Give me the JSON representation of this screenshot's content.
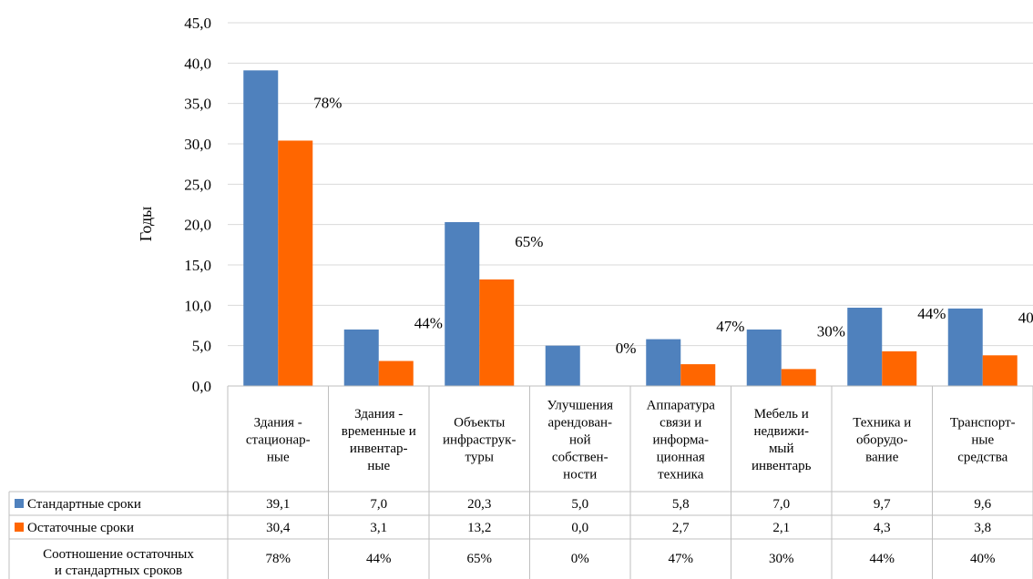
{
  "chart_data": {
    "type": "bar",
    "ylabel": "Годы",
    "ylim": [
      0,
      45
    ],
    "yticks": [
      "0,0",
      "5,0",
      "10,0",
      "15,0",
      "20,0",
      "25,0",
      "30,0",
      "35,0",
      "40,0",
      "45,0"
    ],
    "grid": true,
    "categories": [
      [
        "Здания -",
        "стационар-",
        "ные"
      ],
      [
        "Здания -",
        "временные и",
        "инвентар-",
        "ные"
      ],
      [
        "Объекты",
        "инфраструк-",
        "туры"
      ],
      [
        "Улучшения",
        "арендован-",
        "ной",
        "собствен-",
        "ности"
      ],
      [
        "Аппаратура",
        "связи и",
        "информа-",
        "ционная",
        "техника"
      ],
      [
        "Мебель и",
        "недвижи-",
        "мый",
        "инвентарь"
      ],
      [
        "Техника и",
        "оборудо-",
        "вание"
      ],
      [
        "Транспорт-",
        "ные",
        "средства"
      ]
    ],
    "series": [
      {
        "name": "Стандартные сроки",
        "color": "#4f81bd",
        "values": [
          39.1,
          7.0,
          20.3,
          5.0,
          5.8,
          7.0,
          9.7,
          9.6
        ],
        "labels": [
          "39,1",
          "7,0",
          "20,3",
          "5,0",
          "5,8",
          "7,0",
          "9,7",
          "9,6"
        ]
      },
      {
        "name": "Остаточные сроки",
        "color": "#ff6600",
        "values": [
          30.4,
          3.1,
          13.2,
          0.0,
          2.7,
          2.1,
          4.3,
          3.8
        ],
        "labels": [
          "30,4",
          "3,1",
          "13,2",
          "0,0",
          "2,7",
          "2,1",
          "4,3",
          "3,8"
        ]
      }
    ],
    "ratio": {
      "name": [
        "Соотношение остаточных",
        "и стандартных сроков"
      ],
      "values": [
        "78%",
        "44%",
        "65%",
        "0%",
        "47%",
        "30%",
        "44%",
        "40%"
      ]
    },
    "legend_placement": "data-table"
  }
}
